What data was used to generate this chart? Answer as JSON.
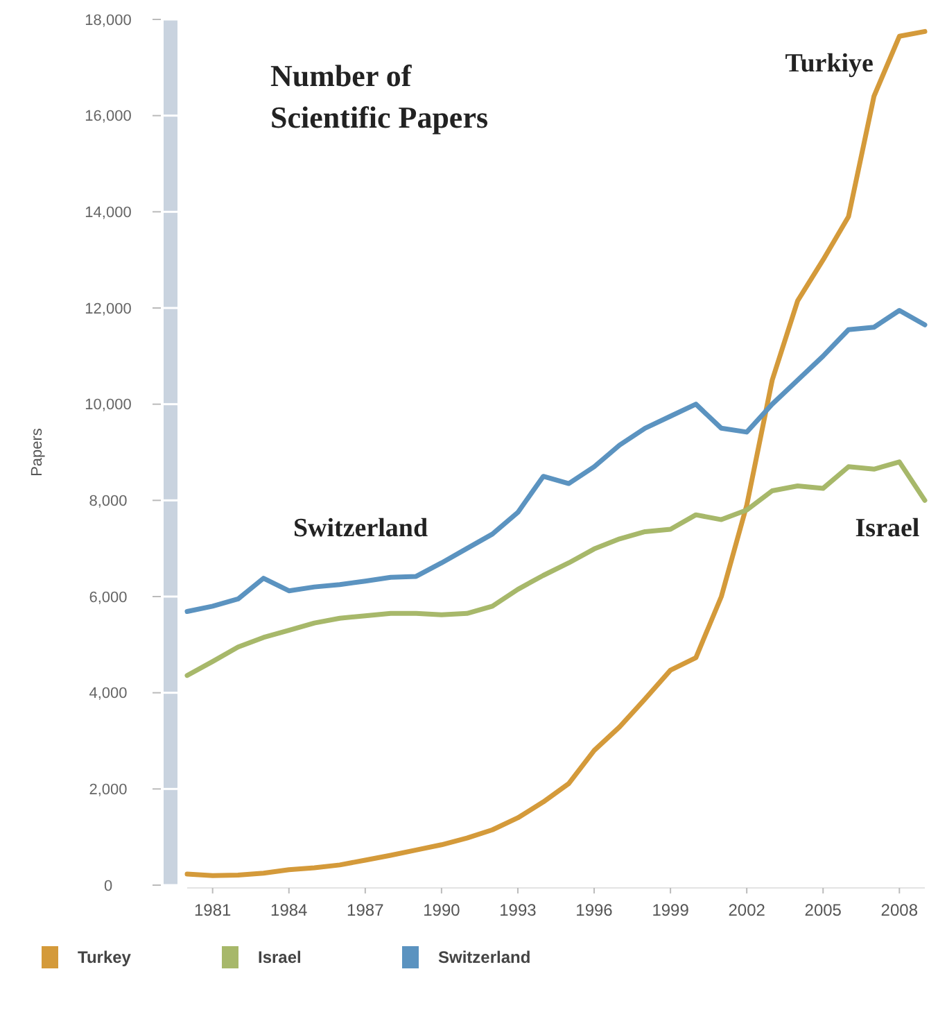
{
  "chart_data": {
    "type": "line",
    "title": "Number of Scientific Papers",
    "ylabel": "Papers",
    "x": [
      1980,
      1981,
      1982,
      1983,
      1984,
      1985,
      1986,
      1987,
      1988,
      1989,
      1990,
      1991,
      1992,
      1993,
      1994,
      1995,
      1996,
      1997,
      1998,
      1999,
      2000,
      2001,
      2002,
      2003,
      2004,
      2005,
      2006,
      2007,
      2008,
      2009
    ],
    "series": [
      {
        "name": "Turkey",
        "color": "#d49a3a",
        "values": [
          230,
          200,
          210,
          250,
          320,
          360,
          420,
          520,
          620,
          730,
          840,
          980,
          1150,
          1400,
          1730,
          2110,
          2800,
          3290,
          3870,
          4470,
          4730,
          6000,
          7900,
          10500,
          12150,
          13000,
          13900,
          16400,
          17650,
          17750
        ]
      },
      {
        "name": "Israel",
        "color": "#a7b86a",
        "values": [
          4360,
          4650,
          4950,
          5150,
          5300,
          5450,
          5550,
          5600,
          5650,
          5650,
          5620,
          5650,
          5800,
          6150,
          6440,
          6700,
          6990,
          7200,
          7350,
          7400,
          7700,
          7600,
          7800,
          8200,
          8300,
          8250,
          8700,
          8650,
          8800,
          8000
        ]
      },
      {
        "name": "Switzerland",
        "color": "#5b93c0",
        "values": [
          5690,
          5800,
          5950,
          6380,
          6120,
          6200,
          6250,
          6320,
          6400,
          6420,
          6700,
          7000,
          7300,
          7750,
          8500,
          8350,
          8700,
          9150,
          9500,
          9750,
          10000,
          9500,
          9420,
          10000,
          10500,
          11000,
          11550,
          11600,
          11950,
          11650
        ]
      }
    ],
    "xlim": [
      1980,
      2009
    ],
    "xticks": [
      1981,
      1984,
      1987,
      1990,
      1993,
      1996,
      1999,
      2002,
      2005,
      2008
    ],
    "ylim": [
      0,
      18000
    ],
    "yticks": [
      0,
      {
        "value": 2000,
        "label": "2,000"
      },
      {
        "value": 4000,
        "label": "4,000"
      },
      {
        "value": 6000,
        "label": "6,000"
      },
      {
        "value": 8000,
        "label": "8,000"
      },
      {
        "value": 10000,
        "label": "10,000"
      },
      {
        "value": 12000,
        "label": "12,000"
      },
      {
        "value": 14000,
        "label": "14,000"
      },
      {
        "value": 16000,
        "label": "16,000"
      },
      {
        "value": 18000,
        "label": "18,000"
      }
    ],
    "annotations": [
      "Turkiye",
      "Switzerland",
      "Israel"
    ],
    "grid": false,
    "legend": "bottom",
    "marker": "none",
    "line_style": "solid"
  }
}
